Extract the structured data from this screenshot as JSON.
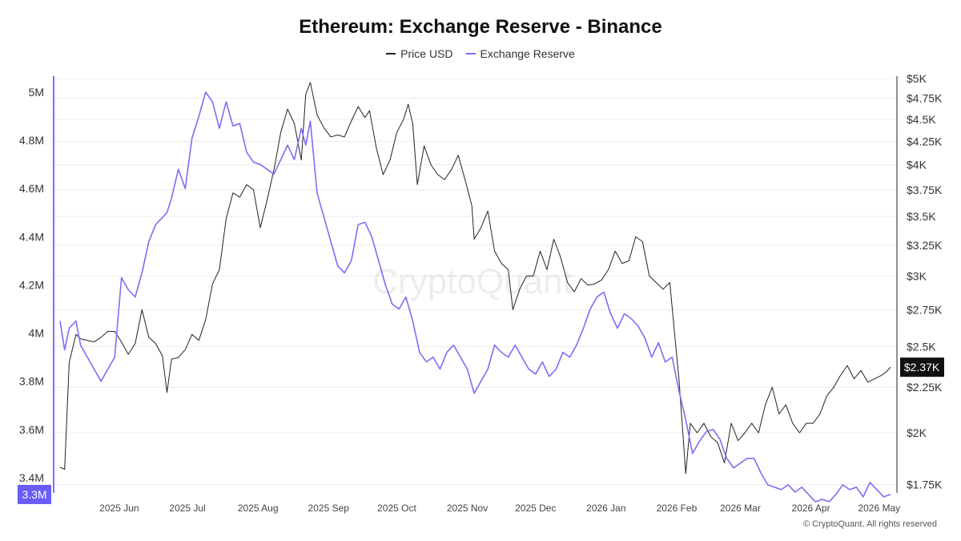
{
  "chart_data": {
    "type": "line",
    "title": "Ethereum: Exchange Reserve - Binance",
    "legend_position": "top-center",
    "grid": true,
    "watermark": "CryptoQuant",
    "copyright": "© CryptoQuant. All rights reserved",
    "x_ticks": [
      "2025 Jun",
      "2025 Jul",
      "2025 Aug",
      "2025 Sep",
      "2025 Oct",
      "2025 Nov",
      "2025 Dec",
      "2026 Jan",
      "2026 Feb",
      "2026 Mar",
      "2026 Apr",
      "2026 May"
    ],
    "left_axis": {
      "ticks": [
        "5M",
        "4.8M",
        "4.6M",
        "4.4M",
        "4.2M",
        "4M",
        "3.8M",
        "3.6M",
        "3.4M"
      ],
      "tick_values": [
        5000000,
        4800000,
        4600000,
        4400000,
        4200000,
        4000000,
        3800000,
        3600000,
        3400000
      ],
      "range": [
        3230000,
        5000000
      ],
      "current_label": "3.3M",
      "current_value": 3330000
    },
    "right_axis": {
      "ticks": [
        "$5K",
        "$4.75K",
        "$4.5K",
        "$4.25K",
        "$4K",
        "$3.75K",
        "$3.5K",
        "$3.25K",
        "$3K",
        "$2.75K",
        "$2.5K",
        "$2.25K",
        "$2K",
        "$1.75K"
      ],
      "tick_values": [
        5000,
        4750,
        4500,
        4250,
        4000,
        3750,
        3500,
        3250,
        3000,
        2750,
        2500,
        2250,
        2000,
        1750
      ],
      "scale": "log",
      "range": [
        1730,
        5000
      ],
      "current_label": "$2.37K",
      "current_value": 2370
    },
    "x_range": [
      "2025-05-06",
      "2026-05-06"
    ],
    "series": [
      {
        "name": "Price USD",
        "color": "#222222",
        "axis": "right",
        "points": [
          [
            "2025-05-06",
            1830
          ],
          [
            "2025-05-08",
            1820
          ],
          [
            "2025-05-10",
            2400
          ],
          [
            "2025-05-13",
            2580
          ],
          [
            "2025-05-15",
            2550
          ],
          [
            "2025-05-18",
            2540
          ],
          [
            "2025-05-21",
            2530
          ],
          [
            "2025-05-24",
            2560
          ],
          [
            "2025-05-27",
            2600
          ],
          [
            "2025-05-30",
            2600
          ],
          [
            "2025-06-02",
            2530
          ],
          [
            "2025-06-05",
            2450
          ],
          [
            "2025-06-08",
            2520
          ],
          [
            "2025-06-11",
            2750
          ],
          [
            "2025-06-14",
            2560
          ],
          [
            "2025-06-17",
            2520
          ],
          [
            "2025-06-20",
            2440
          ],
          [
            "2025-06-22",
            2220
          ],
          [
            "2025-06-24",
            2420
          ],
          [
            "2025-06-27",
            2430
          ],
          [
            "2025-06-30",
            2480
          ],
          [
            "2025-07-03",
            2580
          ],
          [
            "2025-07-06",
            2540
          ],
          [
            "2025-07-09",
            2680
          ],
          [
            "2025-07-12",
            2940
          ],
          [
            "2025-07-15",
            3050
          ],
          [
            "2025-07-18",
            3480
          ],
          [
            "2025-07-21",
            3720
          ],
          [
            "2025-07-24",
            3680
          ],
          [
            "2025-07-27",
            3800
          ],
          [
            "2025-07-30",
            3750
          ],
          [
            "2025-08-02",
            3400
          ],
          [
            "2025-08-05",
            3650
          ],
          [
            "2025-08-08",
            3950
          ],
          [
            "2025-08-11",
            4350
          ],
          [
            "2025-08-14",
            4620
          ],
          [
            "2025-08-17",
            4450
          ],
          [
            "2025-08-20",
            4050
          ],
          [
            "2025-08-22",
            4800
          ],
          [
            "2025-08-24",
            4950
          ],
          [
            "2025-08-27",
            4550
          ],
          [
            "2025-08-30",
            4400
          ],
          [
            "2025-09-02",
            4300
          ],
          [
            "2025-09-05",
            4320
          ],
          [
            "2025-09-08",
            4300
          ],
          [
            "2025-09-11",
            4480
          ],
          [
            "2025-09-14",
            4650
          ],
          [
            "2025-09-17",
            4520
          ],
          [
            "2025-09-19",
            4600
          ],
          [
            "2025-09-22",
            4180
          ],
          [
            "2025-09-25",
            3900
          ],
          [
            "2025-09-28",
            4050
          ],
          [
            "2025-10-01",
            4350
          ],
          [
            "2025-10-04",
            4500
          ],
          [
            "2025-10-06",
            4680
          ],
          [
            "2025-10-08",
            4450
          ],
          [
            "2025-10-10",
            3800
          ],
          [
            "2025-10-13",
            4200
          ],
          [
            "2025-10-16",
            4000
          ],
          [
            "2025-10-19",
            3900
          ],
          [
            "2025-10-22",
            3850
          ],
          [
            "2025-10-25",
            3950
          ],
          [
            "2025-10-28",
            4100
          ],
          [
            "2025-10-31",
            3850
          ],
          [
            "2025-11-03",
            3600
          ],
          [
            "2025-11-04",
            3300
          ],
          [
            "2025-11-07",
            3400
          ],
          [
            "2025-11-10",
            3550
          ],
          [
            "2025-11-13",
            3200
          ],
          [
            "2025-11-16",
            3100
          ],
          [
            "2025-11-19",
            3050
          ],
          [
            "2025-11-21",
            2750
          ],
          [
            "2025-11-24",
            2900
          ],
          [
            "2025-11-27",
            3000
          ],
          [
            "2025-11-30",
            3000
          ],
          [
            "2025-12-03",
            3200
          ],
          [
            "2025-12-06",
            3050
          ],
          [
            "2025-12-09",
            3300
          ],
          [
            "2025-12-12",
            3150
          ],
          [
            "2025-12-15",
            2950
          ],
          [
            "2025-12-18",
            2880
          ],
          [
            "2025-12-21",
            2980
          ],
          [
            "2025-12-24",
            2930
          ],
          [
            "2025-12-27",
            2940
          ],
          [
            "2025-12-30",
            2970
          ],
          [
            "2026-01-02",
            3050
          ],
          [
            "2026-01-05",
            3200
          ],
          [
            "2026-01-08",
            3100
          ],
          [
            "2026-01-11",
            3120
          ],
          [
            "2026-01-14",
            3320
          ],
          [
            "2026-01-17",
            3280
          ],
          [
            "2026-01-20",
            3000
          ],
          [
            "2026-01-23",
            2950
          ],
          [
            "2026-01-26",
            2900
          ],
          [
            "2026-01-29",
            2950
          ],
          [
            "2026-01-31",
            2600
          ],
          [
            "2026-02-02",
            2300
          ],
          [
            "2026-02-05",
            1800
          ],
          [
            "2026-02-07",
            2050
          ],
          [
            "2026-02-10",
            2000
          ],
          [
            "2026-02-13",
            2050
          ],
          [
            "2026-02-16",
            1980
          ],
          [
            "2026-02-19",
            1950
          ],
          [
            "2026-02-22",
            1850
          ],
          [
            "2026-02-25",
            2050
          ],
          [
            "2026-02-28",
            1960
          ],
          [
            "2026-03-03",
            2000
          ],
          [
            "2026-03-06",
            2050
          ],
          [
            "2026-03-09",
            2000
          ],
          [
            "2026-03-12",
            2150
          ],
          [
            "2026-03-15",
            2250
          ],
          [
            "2026-03-18",
            2100
          ],
          [
            "2026-03-21",
            2150
          ],
          [
            "2026-03-24",
            2050
          ],
          [
            "2026-03-27",
            2000
          ],
          [
            "2026-03-30",
            2050
          ],
          [
            "2026-04-02",
            2050
          ],
          [
            "2026-04-05",
            2100
          ],
          [
            "2026-04-08",
            2200
          ],
          [
            "2026-04-11",
            2250
          ],
          [
            "2026-04-14",
            2320
          ],
          [
            "2026-04-17",
            2380
          ],
          [
            "2026-04-20",
            2300
          ],
          [
            "2026-04-23",
            2350
          ],
          [
            "2026-04-26",
            2280
          ],
          [
            "2026-04-29",
            2300
          ],
          [
            "2026-05-02",
            2320
          ],
          [
            "2026-05-04",
            2340
          ],
          [
            "2026-05-06",
            2370
          ]
        ]
      },
      {
        "name": "Exchange Reserve",
        "color": "#7b6ef6",
        "axis": "left",
        "points": [
          [
            "2025-05-06",
            4050000
          ],
          [
            "2025-05-08",
            3930000
          ],
          [
            "2025-05-10",
            4020000
          ],
          [
            "2025-05-13",
            4050000
          ],
          [
            "2025-05-15",
            3950000
          ],
          [
            "2025-05-18",
            3900000
          ],
          [
            "2025-05-21",
            3850000
          ],
          [
            "2025-05-24",
            3800000
          ],
          [
            "2025-05-27",
            3850000
          ],
          [
            "2025-05-30",
            3900000
          ],
          [
            "2025-06-02",
            4230000
          ],
          [
            "2025-06-05",
            4180000
          ],
          [
            "2025-06-08",
            4150000
          ],
          [
            "2025-06-11",
            4250000
          ],
          [
            "2025-06-14",
            4380000
          ],
          [
            "2025-06-17",
            4450000
          ],
          [
            "2025-06-20",
            4480000
          ],
          [
            "2025-06-22",
            4500000
          ],
          [
            "2025-06-24",
            4560000
          ],
          [
            "2025-06-27",
            4680000
          ],
          [
            "2025-06-30",
            4600000
          ],
          [
            "2025-07-03",
            4810000
          ],
          [
            "2025-07-06",
            4900000
          ],
          [
            "2025-07-09",
            5000000
          ],
          [
            "2025-07-12",
            4960000
          ],
          [
            "2025-07-15",
            4850000
          ],
          [
            "2025-07-18",
            4960000
          ],
          [
            "2025-07-21",
            4860000
          ],
          [
            "2025-07-24",
            4870000
          ],
          [
            "2025-07-27",
            4750000
          ],
          [
            "2025-07-30",
            4710000
          ],
          [
            "2025-08-02",
            4700000
          ],
          [
            "2025-08-05",
            4680000
          ],
          [
            "2025-08-08",
            4660000
          ],
          [
            "2025-08-11",
            4720000
          ],
          [
            "2025-08-14",
            4780000
          ],
          [
            "2025-08-17",
            4720000
          ],
          [
            "2025-08-20",
            4850000
          ],
          [
            "2025-08-22",
            4780000
          ],
          [
            "2025-08-24",
            4880000
          ],
          [
            "2025-08-27",
            4580000
          ],
          [
            "2025-08-30",
            4480000
          ],
          [
            "2025-09-02",
            4380000
          ],
          [
            "2025-09-05",
            4280000
          ],
          [
            "2025-09-08",
            4250000
          ],
          [
            "2025-09-11",
            4300000
          ],
          [
            "2025-09-14",
            4450000
          ],
          [
            "2025-09-17",
            4460000
          ],
          [
            "2025-09-20",
            4400000
          ],
          [
            "2025-09-23",
            4300000
          ],
          [
            "2025-09-26",
            4200000
          ],
          [
            "2025-09-29",
            4120000
          ],
          [
            "2025-10-02",
            4100000
          ],
          [
            "2025-10-05",
            4150000
          ],
          [
            "2025-10-08",
            4050000
          ],
          [
            "2025-10-11",
            3920000
          ],
          [
            "2025-10-14",
            3880000
          ],
          [
            "2025-10-17",
            3900000
          ],
          [
            "2025-10-20",
            3850000
          ],
          [
            "2025-10-23",
            3920000
          ],
          [
            "2025-10-26",
            3950000
          ],
          [
            "2025-10-29",
            3900000
          ],
          [
            "2025-11-01",
            3850000
          ],
          [
            "2025-11-04",
            3750000
          ],
          [
            "2025-11-07",
            3800000
          ],
          [
            "2025-11-10",
            3850000
          ],
          [
            "2025-11-13",
            3950000
          ],
          [
            "2025-11-16",
            3920000
          ],
          [
            "2025-11-19",
            3900000
          ],
          [
            "2025-11-22",
            3950000
          ],
          [
            "2025-11-25",
            3900000
          ],
          [
            "2025-11-28",
            3850000
          ],
          [
            "2025-12-01",
            3830000
          ],
          [
            "2025-12-04",
            3880000
          ],
          [
            "2025-12-07",
            3820000
          ],
          [
            "2025-12-10",
            3850000
          ],
          [
            "2025-12-13",
            3920000
          ],
          [
            "2025-12-16",
            3900000
          ],
          [
            "2025-12-19",
            3950000
          ],
          [
            "2025-12-22",
            4020000
          ],
          [
            "2025-12-25",
            4100000
          ],
          [
            "2025-12-28",
            4150000
          ],
          [
            "2025-12-31",
            4170000
          ],
          [
            "2026-01-03",
            4080000
          ],
          [
            "2026-01-06",
            4020000
          ],
          [
            "2026-01-09",
            4080000
          ],
          [
            "2026-01-12",
            4060000
          ],
          [
            "2026-01-15",
            4030000
          ],
          [
            "2026-01-18",
            3980000
          ],
          [
            "2026-01-21",
            3900000
          ],
          [
            "2026-01-24",
            3960000
          ],
          [
            "2026-01-27",
            3880000
          ],
          [
            "2026-01-30",
            3900000
          ],
          [
            "2026-02-02",
            3760000
          ],
          [
            "2026-02-05",
            3640000
          ],
          [
            "2026-02-08",
            3500000
          ],
          [
            "2026-02-11",
            3550000
          ],
          [
            "2026-02-14",
            3590000
          ],
          [
            "2026-02-17",
            3600000
          ],
          [
            "2026-02-20",
            3560000
          ],
          [
            "2026-02-23",
            3480000
          ],
          [
            "2026-02-26",
            3440000
          ],
          [
            "2026-03-01",
            3460000
          ],
          [
            "2026-03-04",
            3480000
          ],
          [
            "2026-03-07",
            3480000
          ],
          [
            "2026-03-10",
            3420000
          ],
          [
            "2026-03-13",
            3370000
          ],
          [
            "2026-03-16",
            3360000
          ],
          [
            "2026-03-19",
            3350000
          ],
          [
            "2026-03-22",
            3370000
          ],
          [
            "2026-03-25",
            3340000
          ],
          [
            "2026-03-28",
            3360000
          ],
          [
            "2026-03-31",
            3330000
          ],
          [
            "2026-04-03",
            3300000
          ],
          [
            "2026-04-06",
            3310000
          ],
          [
            "2026-04-09",
            3300000
          ],
          [
            "2026-04-12",
            3330000
          ],
          [
            "2026-04-15",
            3370000
          ],
          [
            "2026-04-18",
            3350000
          ],
          [
            "2026-04-21",
            3360000
          ],
          [
            "2026-04-24",
            3320000
          ],
          [
            "2026-04-27",
            3380000
          ],
          [
            "2026-04-30",
            3350000
          ],
          [
            "2026-05-03",
            3320000
          ],
          [
            "2026-05-06",
            3330000
          ]
        ]
      }
    ]
  }
}
